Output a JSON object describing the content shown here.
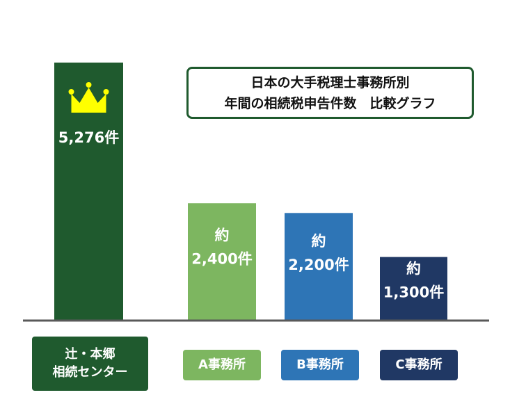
{
  "chart_data": {
    "type": "bar",
    "title": "日本の大手税理士事務所別",
    "subtitle": "年間の相続税申告件数　比較グラフ",
    "categories": [
      "辻・本郷 相続センター",
      "A事務所",
      "B事務所",
      "C事務所"
    ],
    "category_lines": [
      [
        "辻・本郷",
        "相続センター"
      ],
      [
        "A事務所"
      ],
      [
        "B事務所"
      ],
      [
        "C事務所"
      ]
    ],
    "values": [
      5276,
      2400,
      2200,
      1300
    ],
    "data_labels": [
      [
        "5,276件"
      ],
      [
        "約",
        "2,400件"
      ],
      [
        "約",
        "2,200件"
      ],
      [
        "約",
        "1,300件"
      ]
    ],
    "ylim": [
      0,
      5276
    ],
    "grid": false,
    "highlight_icon": "crown-icon",
    "colors": {
      "bars": [
        "#1f5a2e",
        "#7db660",
        "#2e75b6",
        "#203864"
      ],
      "label_boxes": [
        "#1f5a2e",
        "#7db660",
        "#2e75b6",
        "#203864"
      ],
      "crown": "#ffff00",
      "baseline": "#595959",
      "title_border": "#1f5a2e"
    }
  }
}
